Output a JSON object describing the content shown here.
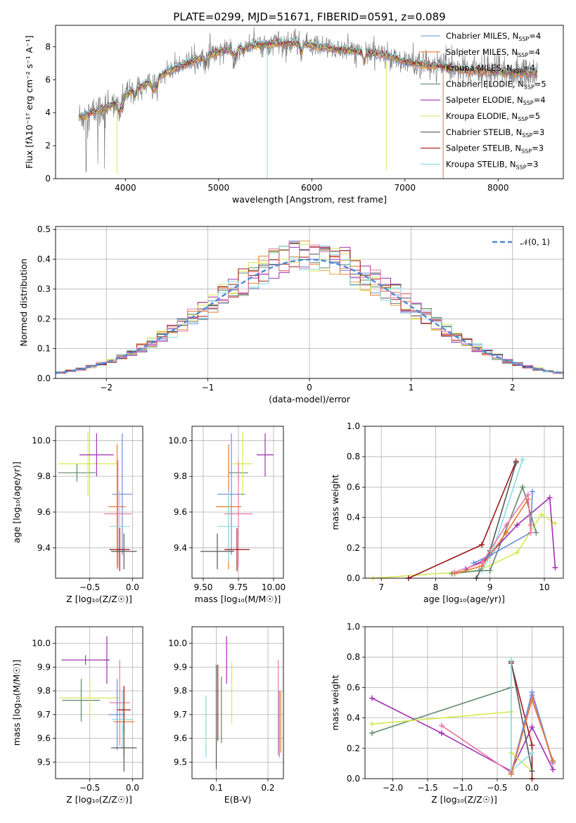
{
  "figure_title": "PLATE=0299, MJD=51671, FIBERID=0591, z=0.089",
  "colors": {
    "chabrier_miles": "#6b8fd8",
    "salpeter_miles": "#e87a2a",
    "kroupa_miles": "#e8a040",
    "chabrier_elodie": "#5f8a6a",
    "salpeter_elodie": "#a030b0",
    "kroupa_elodie": "#d8e850",
    "chabrier_stelib": "#555555",
    "salpeter_stelib": "#a01818",
    "kroupa_stelib": "#88dde0",
    "pink": "#e878a8",
    "data": "#808080",
    "normal": "#4a8ad8"
  },
  "legend_spectrum": [
    "Chabrier MILES, N_SSP=4",
    "Salpeter MILES, N_SSP=4",
    "Kroupa MILES, N_SSP=4",
    "Chabrier ELODIE, N_SSP=5",
    "Salpeter ELODIE, N_SSP=4",
    "Kroupa ELODIE, N_SSP=5",
    "Chabrier STELIB, N_SSP=3",
    "Salpeter STELIB, N_SSP=3",
    "Kroupa STELIB, N_SSP=3"
  ],
  "legend_hist": "𝒩(0, 1)",
  "chart_data": [
    {
      "type": "line",
      "id": "spectrum",
      "xlabel": "wavelength [Angstrom, rest frame]",
      "ylabel": "Flux [fλ10⁻¹⁷ erg cm⁻² s⁻¹ A⁻¹]",
      "xlim": [
        3250,
        8700
      ],
      "ylim": [
        0,
        9.3
      ],
      "xticks": [
        4000,
        5000,
        6000,
        7000,
        8000
      ],
      "yticks": [
        0,
        2,
        4,
        6,
        8
      ],
      "grid": false,
      "legend_position": "right",
      "continuum": [
        [
          3500,
          3.7
        ],
        [
          3700,
          4.1
        ],
        [
          3900,
          4.6
        ],
        [
          4000,
          5.1
        ],
        [
          4200,
          5.7
        ],
        [
          4500,
          6.6
        ],
        [
          4800,
          7.3
        ],
        [
          5000,
          7.7
        ],
        [
          5200,
          8.0
        ],
        [
          5400,
          8.1
        ],
        [
          5600,
          8.2
        ],
        [
          5800,
          8.2
        ],
        [
          6000,
          8.1
        ],
        [
          6200,
          7.9
        ],
        [
          6500,
          7.7
        ],
        [
          6800,
          7.5
        ],
        [
          7000,
          7.1
        ],
        [
          7200,
          6.9
        ],
        [
          7400,
          6.8
        ],
        [
          7600,
          6.6
        ],
        [
          7800,
          6.5
        ],
        [
          8000,
          6.5
        ],
        [
          8200,
          6.4
        ],
        [
          8400,
          6.4
        ]
      ]
    },
    {
      "type": "bar",
      "id": "residuals",
      "xlabel": "(data-model)/error",
      "ylabel": "Normed distribution",
      "xlim": [
        -2.5,
        2.5
      ],
      "ylim": [
        0,
        0.51
      ],
      "xticks": [
        -2,
        -1,
        0,
        1,
        2
      ],
      "yticks": [
        0.0,
        0.1,
        0.2,
        0.3,
        0.4,
        0.5
      ],
      "grid": true,
      "legend_position": "top-right",
      "bin_width": 0.1
    },
    {
      "type": "scatter",
      "id": "age_vs_Z",
      "xlabel": "Z [log₁₀(Z/Z☉)]",
      "ylabel": "age  [log₁₀(age/yr)]",
      "xlim": [
        -0.9,
        0.12
      ],
      "ylim": [
        9.23,
        10.08
      ],
      "xticks": [
        -0.5,
        0.0
      ],
      "yticks": [
        9.4,
        9.6,
        9.8,
        10.0
      ],
      "grid": true,
      "points": [
        {
          "x": -0.65,
          "y": 9.82,
          "dx": 0.22,
          "dy": 0.05,
          "c": "chabrier_elodie"
        },
        {
          "x": -0.52,
          "y": 9.87,
          "dx": 0.35,
          "dy": 0.18,
          "c": "kroupa_elodie"
        },
        {
          "x": -0.42,
          "y": 9.92,
          "dx": 0.2,
          "dy": 0.12,
          "c": "salpeter_elodie"
        },
        {
          "x": -0.12,
          "y": 9.7,
          "dx": 0.12,
          "dy": 0.34,
          "c": "chabrier_miles"
        },
        {
          "x": -0.18,
          "y": 9.63,
          "dx": 0.1,
          "dy": 0.35,
          "c": "salpeter_miles"
        },
        {
          "x": -0.17,
          "y": 9.59,
          "dx": 0.16,
          "dy": 0.3,
          "c": "pink"
        },
        {
          "x": -0.15,
          "y": 9.52,
          "dx": 0.12,
          "dy": 0.2,
          "c": "kroupa_stelib"
        },
        {
          "x": -0.15,
          "y": 9.39,
          "dx": 0.12,
          "dy": 0.12,
          "c": "salpeter_stelib"
        },
        {
          "x": -0.1,
          "y": 9.38,
          "dx": 0.15,
          "dy": 0.1,
          "c": "chabrier_stelib"
        }
      ]
    },
    {
      "type": "scatter",
      "id": "age_vs_mass",
      "xlabel": "mass [log₁₀(M/M☉)]",
      "ylabel": "",
      "xlim": [
        9.42,
        10.07
      ],
      "ylim": [
        9.23,
        10.08
      ],
      "xticks": [
        9.5,
        9.75,
        10.0
      ],
      "yticks": [
        9.4,
        9.6,
        9.8,
        10.0
      ],
      "grid": true,
      "points": [
        {
          "x": 9.75,
          "y": 9.82,
          "dx": 0.07,
          "dy": 0.05,
          "c": "chabrier_elodie"
        },
        {
          "x": 9.78,
          "y": 9.87,
          "dx": 0.07,
          "dy": 0.18,
          "c": "kroupa_elodie"
        },
        {
          "x": 9.94,
          "y": 9.92,
          "dx": 0.06,
          "dy": 0.12,
          "c": "salpeter_elodie"
        },
        {
          "x": 9.7,
          "y": 9.7,
          "dx": 0.1,
          "dy": 0.34,
          "c": "chabrier_miles"
        },
        {
          "x": 9.68,
          "y": 9.63,
          "dx": 0.09,
          "dy": 0.35,
          "c": "salpeter_miles"
        },
        {
          "x": 9.75,
          "y": 9.59,
          "dx": 0.1,
          "dy": 0.3,
          "c": "pink"
        },
        {
          "x": 9.68,
          "y": 9.52,
          "dx": 0.08,
          "dy": 0.2,
          "c": "kroupa_stelib"
        },
        {
          "x": 9.74,
          "y": 9.39,
          "dx": 0.09,
          "dy": 0.12,
          "c": "salpeter_stelib"
        },
        {
          "x": 9.6,
          "y": 9.38,
          "dx": 0.12,
          "dy": 0.1,
          "c": "chabrier_stelib"
        }
      ]
    },
    {
      "type": "line",
      "id": "weight_vs_age",
      "xlabel": "age  [log₁₀(age/yr)]",
      "ylabel": "mass weight",
      "xlim": [
        6.7,
        10.35
      ],
      "ylim": [
        0,
        1
      ],
      "xticks": [
        7,
        8,
        9,
        10
      ],
      "yticks": [
        0.0,
        0.2,
        0.4,
        0.6,
        0.8,
        1.0
      ],
      "grid": true,
      "series": [
        {
          "c": "kroupa_elodie",
          "x": [
            6.85,
            8.8,
            9.5,
            9.95,
            10.2
          ],
          "y": [
            0.0,
            0.05,
            0.17,
            0.42,
            0.36
          ]
        },
        {
          "c": "salpeter_stelib",
          "x": [
            7.5,
            8.85,
            9.48
          ],
          "y": [
            0.0,
            0.22,
            0.77
          ]
        },
        {
          "c": "chabrier_stelib",
          "x": [
            8.75,
            9.0,
            9.48
          ],
          "y": [
            0.0,
            0.18,
            0.76
          ]
        },
        {
          "c": "kroupa_stelib",
          "x": [
            8.85,
            9.05,
            9.6
          ],
          "y": [
            0.05,
            0.18,
            0.78
          ]
        },
        {
          "c": "chabrier_elodie",
          "x": [
            8.3,
            8.8,
            9.0,
            9.6,
            9.85
          ],
          "y": [
            0.03,
            0.05,
            0.05,
            0.6,
            0.3
          ]
        },
        {
          "c": "salpeter_elodie",
          "x": [
            8.55,
            8.9,
            9.5,
            10.1,
            10.2
          ],
          "y": [
            0.06,
            0.12,
            0.35,
            0.53,
            0.07
          ]
        },
        {
          "c": "salpeter_miles",
          "x": [
            8.35,
            8.85,
            9.3,
            9.7,
            9.75
          ],
          "y": [
            0.03,
            0.08,
            0.3,
            0.52,
            0.35
          ]
        },
        {
          "c": "chabrier_miles",
          "x": [
            8.7,
            9.0,
            9.75,
            9.78
          ],
          "y": [
            0.1,
            0.15,
            0.3,
            0.57
          ]
        },
        {
          "c": "pink",
          "x": [
            8.35,
            8.85,
            9.3,
            9.7,
            9.75
          ],
          "y": [
            0.04,
            0.1,
            0.35,
            0.55,
            0.3
          ]
        }
      ]
    },
    {
      "type": "scatter",
      "id": "mass_vs_Z",
      "xlabel": "Z [log₁₀(Z/Z☉)]",
      "ylabel": "mass [log₁₀(M/M☉)]",
      "xlim": [
        -0.9,
        0.12
      ],
      "ylim": [
        9.43,
        10.07
      ],
      "xticks": [
        -0.5,
        0.0
      ],
      "yticks": [
        9.5,
        9.6,
        9.7,
        9.8,
        9.9,
        10.0
      ],
      "grid": true,
      "points": [
        {
          "x": -0.55,
          "y": 9.93,
          "dx": 0.28,
          "dy": 0.02,
          "c": "salpeter_elodie"
        },
        {
          "x": -0.6,
          "y": 9.76,
          "dx": 0.22,
          "dy": 0.09,
          "c": "chabrier_elodie"
        },
        {
          "x": -0.5,
          "y": 9.77,
          "dx": 0.35,
          "dy": 0.08,
          "c": "kroupa_elodie"
        },
        {
          "x": -0.3,
          "y": 9.93,
          "dx": 0.03,
          "dy": 0.1,
          "c": "salpeter_elodie"
        },
        {
          "x": -0.15,
          "y": 9.75,
          "dx": 0.12,
          "dy": 0.18,
          "c": "pink"
        },
        {
          "x": -0.18,
          "y": 9.7,
          "dx": 0.1,
          "dy": 0.15,
          "c": "chabrier_miles"
        },
        {
          "x": -0.1,
          "y": 9.67,
          "dx": 0.12,
          "dy": 0.15,
          "c": "salpeter_miles"
        },
        {
          "x": -0.12,
          "y": 9.68,
          "dx": 0.12,
          "dy": 0.12,
          "c": "kroupa_stelib"
        },
        {
          "x": -0.1,
          "y": 9.72,
          "dx": 0.08,
          "dy": 0.1,
          "c": "salpeter_stelib"
        },
        {
          "x": -0.1,
          "y": 9.56,
          "dx": 0.15,
          "dy": 0.1,
          "c": "chabrier_stelib"
        }
      ]
    },
    {
      "type": "scatter",
      "id": "mass_vs_EBV",
      "xlabel": "E(B-V)",
      "ylabel": "",
      "xlim": [
        0.053,
        0.23
      ],
      "ylim": [
        9.43,
        10.07
      ],
      "xticks": [
        0.1,
        0.2
      ],
      "yticks": [
        9.5,
        9.6,
        9.7,
        9.8,
        9.9,
        10.0
      ],
      "grid": true,
      "points": [
        {
          "x": 0.08,
          "y": 9.65,
          "dx": 0,
          "dy": 0.13,
          "c": "kroupa_stelib"
        },
        {
          "x": 0.1,
          "y": 9.69,
          "dx": 0,
          "dy": 0.22,
          "c": "chabrier_stelib"
        },
        {
          "x": 0.103,
          "y": 9.75,
          "dx": 0,
          "dy": 0.16,
          "c": "salpeter_stelib"
        },
        {
          "x": 0.11,
          "y": 9.72,
          "dx": 0,
          "dy": 0.14,
          "c": "chabrier_elodie"
        },
        {
          "x": 0.12,
          "y": 9.93,
          "dx": 0,
          "dy": 0.1,
          "c": "salpeter_elodie"
        },
        {
          "x": 0.13,
          "y": 9.79,
          "dx": 0,
          "dy": 0.13,
          "c": "kroupa_elodie"
        },
        {
          "x": 0.22,
          "y": 9.73,
          "dx": 0,
          "dy": 0.2,
          "c": "pink"
        },
        {
          "x": 0.222,
          "y": 9.66,
          "dx": 0,
          "dy": 0.14,
          "c": "chabrier_miles"
        },
        {
          "x": 0.225,
          "y": 9.67,
          "dx": 0,
          "dy": 0.13,
          "c": "salpeter_miles"
        }
      ]
    },
    {
      "type": "line",
      "id": "weight_vs_Z",
      "xlabel": "Z [log₁₀(Z/Z☉)]",
      "ylabel": "mass weight",
      "xlim": [
        -2.4,
        0.45
      ],
      "ylim": [
        0,
        1
      ],
      "xticks": [
        -2.0,
        -1.5,
        -1.0,
        -0.5,
        0.0
      ],
      "yticks": [
        0.0,
        0.2,
        0.4,
        0.6,
        0.8,
        1.0
      ],
      "grid": true,
      "series": [
        {
          "c": "salpeter_elodie",
          "x": [
            -2.3,
            -1.3,
            -0.3,
            0.0,
            0.3
          ],
          "y": [
            0.53,
            0.3,
            0.05,
            0.34,
            0.06
          ]
        },
        {
          "c": "chabrier_elodie",
          "x": [
            -2.3,
            -0.3,
            -0.3
          ],
          "y": [
            0.3,
            0.6,
            0.03
          ]
        },
        {
          "c": "kroupa_elodie",
          "x": [
            -2.3,
            -0.3,
            -0.3,
            0.0
          ],
          "y": [
            0.36,
            0.44,
            0.17,
            0.05
          ]
        },
        {
          "c": "pink",
          "x": [
            -1.3,
            -0.3,
            0.0,
            0.3
          ],
          "y": [
            0.35,
            0.04,
            0.55,
            0.1
          ]
        },
        {
          "c": "salpeter_stelib",
          "x": [
            -0.3,
            0.0,
            0.0
          ],
          "y": [
            0.76,
            0.22,
            0.0
          ]
        },
        {
          "c": "chabrier_stelib",
          "x": [
            -0.3,
            0.0
          ],
          "y": [
            0.77,
            0.05
          ]
        },
        {
          "c": "kroupa_stelib",
          "x": [
            -0.3,
            -0.3,
            0.0
          ],
          "y": [
            0.78,
            0.05,
            0.17
          ]
        },
        {
          "c": "chabrier_miles",
          "x": [
            -0.3,
            0.0,
            0.3
          ],
          "y": [
            0.03,
            0.57,
            0.11
          ]
        },
        {
          "c": "salpeter_miles",
          "x": [
            -0.3,
            0.0,
            0.3
          ],
          "y": [
            0.03,
            0.52,
            0.12
          ]
        }
      ]
    }
  ]
}
